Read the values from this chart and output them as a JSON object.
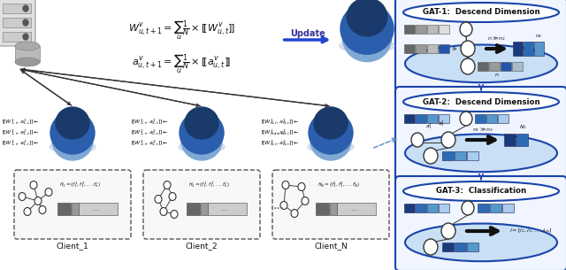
{
  "bg_color": "#ffffff",
  "model_dark": "#1a3a6b",
  "model_mid": "#2b5fad",
  "model_light": "#7fa8d4",
  "model_shadow": "#aabbdd",
  "gat_labels": [
    "GAT-1:  Descend Dimension",
    "GAT-2:  Descend Dimension",
    "GAT-3:  Classification"
  ],
  "gat_border": "#2255aa",
  "ellipse_bg": "#c8dff5",
  "dashed_color": "#5588cc",
  "box_gray1": "#666666",
  "box_gray2": "#999999",
  "box_gray3": "#bbbbbb",
  "box_gray4": "#dddddd",
  "box_blue1": "#1a3a7a",
  "box_blue2": "#2b6bb5",
  "box_blue3": "#5599cc",
  "box_blue4": "#aaccee",
  "client_labels": [
    "Client_1",
    "Client_2",
    "Client_N"
  ]
}
